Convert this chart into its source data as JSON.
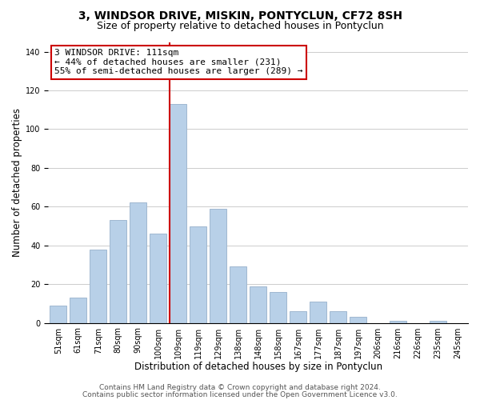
{
  "title": "3, WINDSOR DRIVE, MISKIN, PONTYCLUN, CF72 8SH",
  "subtitle": "Size of property relative to detached houses in Pontyclun",
  "xlabel": "Distribution of detached houses by size in Pontyclun",
  "ylabel": "Number of detached properties",
  "bar_labels": [
    "51sqm",
    "61sqm",
    "71sqm",
    "80sqm",
    "90sqm",
    "100sqm",
    "109sqm",
    "119sqm",
    "129sqm",
    "138sqm",
    "148sqm",
    "158sqm",
    "167sqm",
    "177sqm",
    "187sqm",
    "197sqm",
    "206sqm",
    "216sqm",
    "226sqm",
    "235sqm",
    "245sqm"
  ],
  "bar_values": [
    9,
    13,
    38,
    53,
    62,
    46,
    113,
    50,
    59,
    29,
    19,
    16,
    6,
    11,
    6,
    3,
    0,
    1,
    0,
    1,
    0
  ],
  "bar_color": "#b8d0e8",
  "bar_edge_color": "#a0b8d0",
  "vline_index": 6,
  "vline_color": "#cc0000",
  "ylim": [
    0,
    145
  ],
  "yticks": [
    0,
    20,
    40,
    60,
    80,
    100,
    120,
    140
  ],
  "annotation_title": "3 WINDSOR DRIVE: 111sqm",
  "annotation_line1": "← 44% of detached houses are smaller (231)",
  "annotation_line2": "55% of semi-detached houses are larger (289) →",
  "annotation_box_color": "#ffffff",
  "annotation_box_edge": "#cc0000",
  "footer1": "Contains HM Land Registry data © Crown copyright and database right 2024.",
  "footer2": "Contains public sector information licensed under the Open Government Licence v3.0.",
  "bg_color": "#ffffff",
  "grid_color": "#cccccc",
  "title_fontsize": 10,
  "subtitle_fontsize": 9,
  "xlabel_fontsize": 8.5,
  "ylabel_fontsize": 8.5,
  "tick_fontsize": 7,
  "footer_fontsize": 6.5,
  "ann_fontsize": 8
}
